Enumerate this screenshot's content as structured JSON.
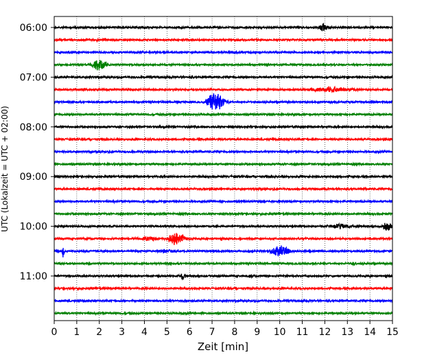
{
  "chart_data": {
    "type": "line",
    "title": "",
    "xlabel": "Zeit  [min]",
    "ylabel": "UTC (Lokalzeit = UTC + 02:00)",
    "xlim": [
      0,
      15
    ],
    "x_ticks": [
      "0",
      "1",
      "2",
      "3",
      "4",
      "5",
      "6",
      "7",
      "8",
      "9",
      "10",
      "11",
      "12",
      "13",
      "14",
      "15"
    ],
    "y_ticks": [
      "06:00",
      "07:00",
      "08:00",
      "09:00",
      "10:00",
      "11:00"
    ],
    "grid": "vertical dotted",
    "legend": "none",
    "trace_colors": [
      "#000000",
      "#ff0000",
      "#0000ff",
      "#008000"
    ],
    "traces": [
      {
        "start": "06:00",
        "color": "#000000",
        "events": [
          {
            "t": 11.95,
            "amp": 1.0,
            "dur": 0.25
          }
        ]
      },
      {
        "start": "06:15",
        "color": "#ff0000",
        "events": []
      },
      {
        "start": "06:30",
        "color": "#0000ff",
        "events": []
      },
      {
        "start": "06:45",
        "color": "#008000",
        "events": [
          {
            "t": 2.0,
            "amp": 1.4,
            "dur": 0.4
          }
        ]
      },
      {
        "start": "07:00",
        "color": "#000000",
        "events": []
      },
      {
        "start": "07:15",
        "color": "#ff0000",
        "events": [
          {
            "t": 12.2,
            "amp": 0.5,
            "dur": 1.5
          }
        ]
      },
      {
        "start": "07:30",
        "color": "#0000ff",
        "events": [
          {
            "t": 7.15,
            "amp": 2.0,
            "dur": 0.5
          }
        ]
      },
      {
        "start": "07:45",
        "color": "#008000",
        "events": []
      },
      {
        "start": "08:00",
        "color": "#000000",
        "events": []
      },
      {
        "start": "08:15",
        "color": "#ff0000",
        "events": []
      },
      {
        "start": "08:30",
        "color": "#0000ff",
        "events": []
      },
      {
        "start": "08:45",
        "color": "#008000",
        "events": []
      },
      {
        "start": "09:00",
        "color": "#000000",
        "events": []
      },
      {
        "start": "09:15",
        "color": "#ff0000",
        "events": []
      },
      {
        "start": "09:30",
        "color": "#0000ff",
        "events": []
      },
      {
        "start": "09:45",
        "color": "#008000",
        "events": []
      },
      {
        "start": "10:00",
        "color": "#000000",
        "events": [
          {
            "t": 12.7,
            "amp": 0.5,
            "dur": 0.6
          },
          {
            "t": 14.75,
            "amp": 0.9,
            "dur": 0.3
          }
        ]
      },
      {
        "start": "10:15",
        "color": "#ff0000",
        "events": [
          {
            "t": 4.1,
            "amp": 0.4,
            "dur": 0.6
          },
          {
            "t": 5.4,
            "amp": 1.4,
            "dur": 0.5
          }
        ]
      },
      {
        "start": "10:30",
        "color": "#0000ff",
        "events": [
          {
            "t": 0.4,
            "amp": 1.3,
            "dur": 0.06
          },
          {
            "t": 5.0,
            "amp": 0.4,
            "dur": 0.5
          },
          {
            "t": 10.0,
            "amp": 1.1,
            "dur": 0.6
          }
        ]
      },
      {
        "start": "10:45",
        "color": "#008000",
        "events": [
          {
            "t": 13.3,
            "amp": 0.4,
            "dur": 0.2
          }
        ]
      },
      {
        "start": "11:00",
        "color": "#000000",
        "events": [
          {
            "t": 5.7,
            "amp": 0.6,
            "dur": 0.2
          },
          {
            "t": 8.6,
            "amp": 0.3,
            "dur": 0.2
          }
        ]
      },
      {
        "start": "11:15",
        "color": "#ff0000",
        "events": []
      },
      {
        "start": "11:30",
        "color": "#0000ff",
        "events": []
      },
      {
        "start": "11:45",
        "color": "#008000",
        "events": []
      }
    ]
  }
}
